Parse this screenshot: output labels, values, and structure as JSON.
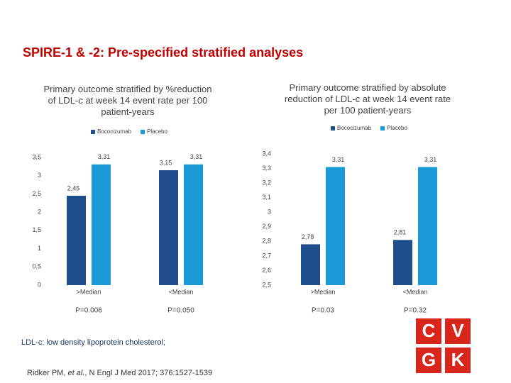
{
  "title": "SPIRE-1 & -2: Pre-specified stratified analyses",
  "chart_data": [
    {
      "type": "bar",
      "title": "Primary outcome stratified by %reduction of LDL-c at week 14 event rate per 100 patient-years",
      "categories": [
        ">Median",
        "<Median"
      ],
      "p_values": [
        "P=0.006",
        "P=0.050"
      ],
      "series": [
        {
          "name": "Bococizumab",
          "color": "#1f4e8c",
          "values": [
            2.45,
            3.15
          ],
          "value_labels": [
            "2,45",
            "3,15"
          ]
        },
        {
          "name": "Placebo",
          "color": "#1a9ad6",
          "values": [
            3.31,
            3.31
          ],
          "value_labels": [
            "3,31",
            "3,31"
          ]
        }
      ],
      "ylim": [
        0,
        3.5
      ],
      "yticks": [
        0,
        {
          "value": 0.5,
          "label": "0,5"
        },
        1,
        {
          "value": 1.5,
          "label": "1,5"
        },
        2,
        {
          "value": 2.5,
          "label": "2,5"
        },
        3,
        {
          "value": 3.5,
          "label": "3,5"
        }
      ]
    },
    {
      "type": "bar",
      "title": "Primary outcome stratified by absolute reduction of LDL-c at week 14 event rate per 100 patient-years",
      "categories": [
        ">Median",
        "<Median"
      ],
      "p_values": [
        "P=0.03",
        "P=0.32"
      ],
      "series": [
        {
          "name": "Bococizumab",
          "color": "#1f4e8c",
          "values": [
            2.78,
            2.81
          ],
          "value_labels": [
            "2,78",
            "2,81"
          ]
        },
        {
          "name": "Placebo",
          "color": "#1a9ad6",
          "values": [
            3.31,
            3.31
          ],
          "value_labels": [
            "3,31",
            "3,31"
          ]
        }
      ],
      "ylim": [
        2.5,
        3.4
      ],
      "yticks": [
        {
          "value": 2.5,
          "label": "2,5"
        },
        {
          "value": 2.6,
          "label": "2,6"
        },
        {
          "value": 2.7,
          "label": "2,7"
        },
        {
          "value": 2.8,
          "label": "2,8"
        },
        {
          "value": 2.9,
          "label": "2,9"
        },
        3,
        {
          "value": 3.1,
          "label": "3,1"
        },
        {
          "value": 3.2,
          "label": "3,2"
        },
        {
          "value": 3.3,
          "label": "3,3"
        },
        {
          "value": 3.4,
          "label": "3,4"
        }
      ]
    }
  ],
  "footnote": "LDL-c: low density lipoprotein cholesterol;",
  "reference": [
    "Ridker PM, ",
    "et al.",
    ", N Engl J Med 2017; 376:1527-1539"
  ],
  "logo": [
    "C",
    "V",
    "G",
    "K"
  ]
}
